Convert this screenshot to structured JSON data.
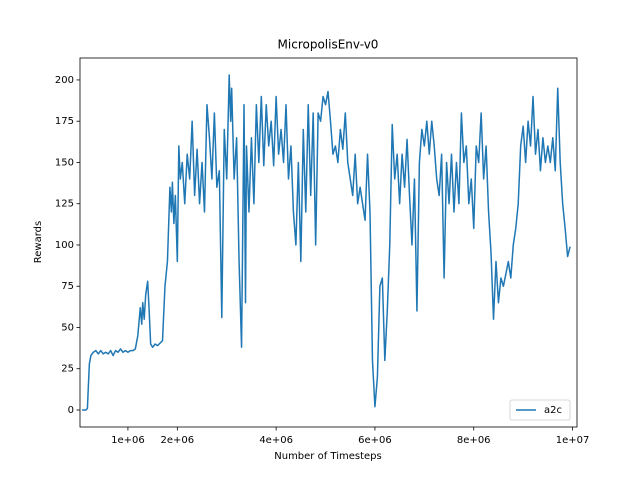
{
  "chart_data": {
    "type": "line",
    "title": "MicropolisEnv-v0",
    "x_label": "Number of Timesteps",
    "y_label": "Rewards",
    "x": [
      70000,
      150000,
      180000,
      200000,
      220000,
      250000,
      300000,
      350000,
      400000,
      450000,
      500000,
      550000,
      600000,
      650000,
      700000,
      750000,
      800000,
      850000,
      900000,
      950000,
      1000000,
      1050000,
      1100000,
      1150000,
      1200000,
      1250000,
      1280000,
      1300000,
      1330000,
      1360000,
      1400000,
      1430000,
      1460000,
      1500000,
      1550000,
      1600000,
      1700000,
      1750000,
      1800000,
      1850000,
      1880000,
      1900000,
      1930000,
      1960000,
      2000000,
      2030000,
      2060000,
      2100000,
      2150000,
      2200000,
      2250000,
      2300000,
      2350000,
      2400000,
      2450000,
      2500000,
      2550000,
      2600000,
      2650000,
      2700000,
      2750000,
      2800000,
      2850000,
      2900000,
      2950000,
      3000000,
      3050000,
      3080000,
      3100000,
      3150000,
      3200000,
      3250000,
      3300000,
      3350000,
      3380000,
      3400000,
      3450000,
      3500000,
      3550000,
      3600000,
      3650000,
      3700000,
      3750000,
      3800000,
      3850000,
      3900000,
      3950000,
      4000000,
      4050000,
      4100000,
      4150000,
      4200000,
      4250000,
      4300000,
      4350000,
      4400000,
      4450000,
      4500000,
      4550000,
      4600000,
      4650000,
      4700000,
      4750000,
      4800000,
      4850000,
      4900000,
      4950000,
      5000000,
      5050000,
      5100000,
      5150000,
      5200000,
      5250000,
      5300000,
      5350000,
      5400000,
      5450000,
      5500000,
      5550000,
      5600000,
      5650000,
      5700000,
      5750000,
      5800000,
      5850000,
      5900000,
      5950000,
      6000000,
      6050000,
      6100000,
      6150000,
      6200000,
      6250000,
      6300000,
      6350000,
      6400000,
      6450000,
      6500000,
      6550000,
      6600000,
      6650000,
      6700000,
      6750000,
      6800000,
      6850000,
      6900000,
      6950000,
      7000000,
      7050000,
      7100000,
      7150000,
      7200000,
      7250000,
      7300000,
      7350000,
      7400000,
      7450000,
      7500000,
      7550000,
      7600000,
      7650000,
      7700000,
      7750000,
      7800000,
      7850000,
      7900000,
      7950000,
      8000000,
      8050000,
      8100000,
      8150000,
      8200000,
      8250000,
      8300000,
      8350000,
      8400000,
      8450000,
      8500000,
      8550000,
      8600000,
      8700000,
      8750000,
      8800000,
      8850000,
      8900000,
      8950000,
      9000000,
      9050000,
      9100000,
      9150000,
      9200000,
      9250000,
      9300000,
      9350000,
      9400000,
      9450000,
      9500000,
      9550000,
      9600000,
      9650000,
      9700000,
      9750000,
      9800000,
      9850000,
      9900000,
      9950000
    ],
    "series": [
      {
        "name": "a2c",
        "color": "#1f77b4",
        "values": [
          0,
          0,
          1,
          15,
          28,
          33,
          35,
          36,
          34,
          36,
          34,
          35,
          34,
          36,
          33,
          36,
          35,
          37,
          35,
          36,
          35,
          36,
          36,
          37,
          45,
          62,
          52,
          65,
          55,
          70,
          78,
          60,
          40,
          38,
          40,
          39,
          42,
          75,
          90,
          135,
          120,
          138,
          113,
          130,
          90,
          160,
          140,
          150,
          125,
          155,
          140,
          175,
          130,
          158,
          125,
          150,
          120,
          185,
          165,
          140,
          180,
          135,
          145,
          56,
          170,
          140,
          203,
          175,
          195,
          140,
          165,
          90,
          38,
          185,
          65,
          160,
          120,
          165,
          125,
          185,
          150,
          190,
          148,
          185,
          160,
          175,
          148,
          190,
          155,
          170,
          150,
          185,
          140,
          160,
          120,
          100,
          150,
          90,
          170,
          120,
          185,
          130,
          180,
          100,
          180,
          175,
          190,
          185,
          193,
          175,
          155,
          160,
          150,
          170,
          158,
          180,
          150,
          140,
          130,
          155,
          125,
          135,
          125,
          115,
          155,
          120,
          30,
          2,
          20,
          75,
          80,
          30,
          60,
          100,
          173,
          140,
          155,
          125,
          155,
          135,
          164,
          130,
          100,
          140,
          60,
          150,
          170,
          160,
          175,
          155,
          175,
          160,
          140,
          130,
          155,
          80,
          150,
          125,
          155,
          120,
          150,
          125,
          180,
          150,
          160,
          125,
          140,
          110,
          160,
          150,
          180,
          140,
          160,
          120,
          95,
          55,
          90,
          65,
          80,
          75,
          90,
          80,
          100,
          110,
          125,
          160,
          172,
          150,
          175,
          160,
          190,
          155,
          170,
          145,
          165,
          150,
          160,
          150,
          165,
          145,
          195,
          150,
          125,
          110,
          93,
          99
        ]
      }
    ],
    "xlim": [
      30000,
      10090000
    ],
    "ylim": [
      -10.3,
      213.3
    ],
    "xticks": [
      {
        "value": 1000000,
        "label": "1e+06"
      },
      {
        "value": 2000000,
        "label": "2e+06"
      },
      {
        "value": 4000000,
        "label": "4e+06"
      },
      {
        "value": 6000000,
        "label": "6e+06"
      },
      {
        "value": 8000000,
        "label": "8e+06"
      },
      {
        "value": 10000000,
        "label": "1e+07"
      }
    ],
    "yticks": [
      0,
      25,
      50,
      75,
      100,
      125,
      150,
      175,
      200
    ],
    "legend": "lower right"
  }
}
